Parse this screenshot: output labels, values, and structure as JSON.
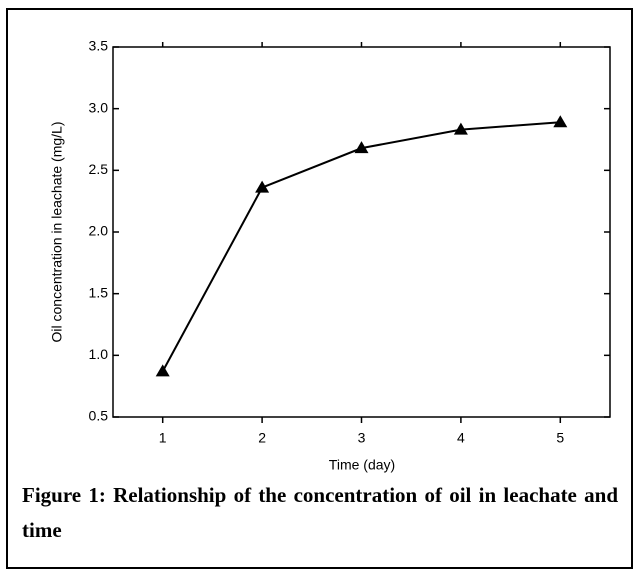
{
  "chart_data": {
    "type": "line",
    "x": [
      1,
      2,
      3,
      4,
      5
    ],
    "series": [
      {
        "color": "#000000",
        "values": [
          0.87,
          2.36,
          2.68,
          2.83,
          2.89
        ]
      }
    ],
    "xlim": [
      0.5,
      5.5
    ],
    "xticks": [
      1,
      2,
      3,
      4,
      5
    ],
    "ylim": [
      0.5,
      3.5
    ],
    "yticks": [
      {
        "value": 0.5,
        "label": "0.5"
      },
      {
        "value": 1.0,
        "label": "1.0"
      },
      {
        "value": 1.5,
        "label": "1.5"
      },
      {
        "value": 2.0,
        "label": "2.0"
      },
      {
        "value": 2.5,
        "label": "2.5"
      },
      {
        "value": 3.0,
        "label": "3.0"
      },
      {
        "value": 3.5,
        "label": "3.5"
      }
    ],
    "xlabel": "Time  (day)",
    "ylabel": "Oil concentration in leachate  (mg/L)",
    "caption": "Figure 1: Relationship of the concentration of oil in leachate and time"
  }
}
